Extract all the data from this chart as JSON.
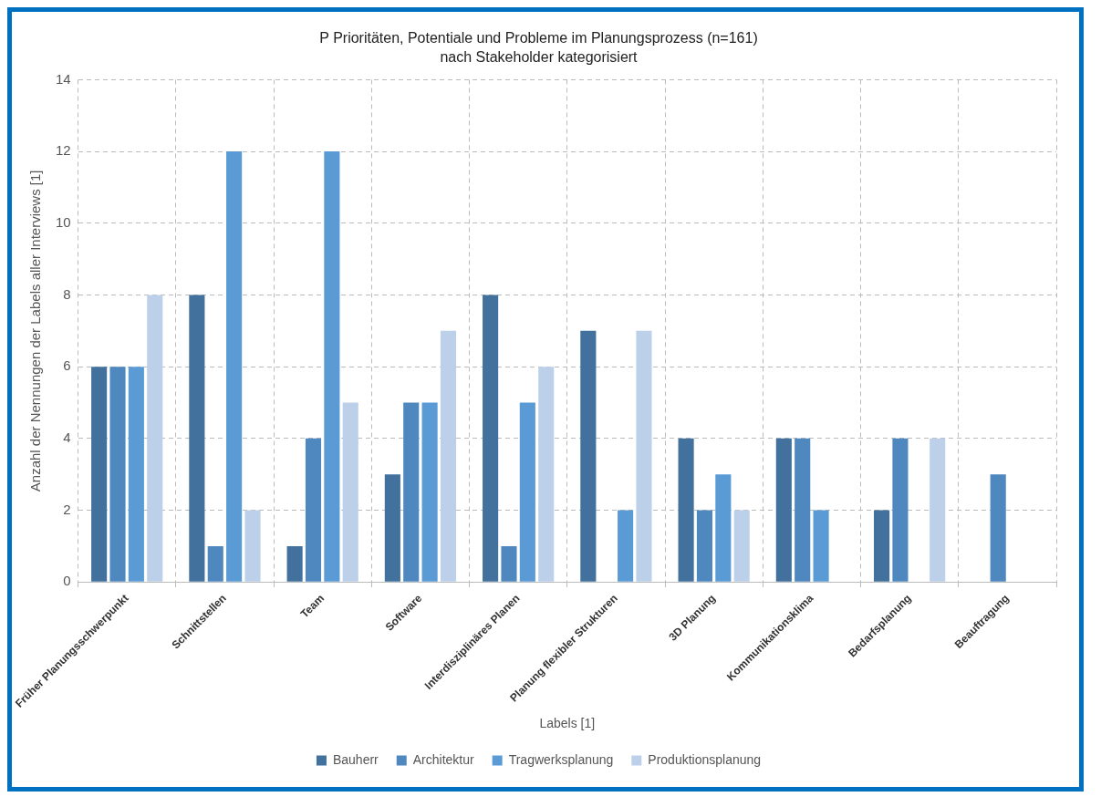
{
  "chart_data": {
    "type": "bar",
    "title": "P Prioritäten, Potentiale und Probleme im Planungsprozess (n=161)",
    "subtitle": "nach Stakeholder kategorisiert",
    "xlabel": "Labels [1]",
    "ylabel": "Anzahl der Nennungen der Labels aller Interviews [1]",
    "categories": [
      "Früher Planungsschwerpunkt",
      "Schnittstellen",
      "Team",
      "Software",
      "Interdisziplinäres Planen",
      "Planung flexibler Strukturen",
      "3D Planung",
      "Kommunikationsklima",
      "Bedarfsplanung",
      "Beauftragung"
    ],
    "series": [
      {
        "name": "Bauherr",
        "color": "#41719c",
        "values": [
          6,
          8,
          1,
          3,
          8,
          7,
          4,
          4,
          2,
          0
        ]
      },
      {
        "name": "Architektur",
        "color": "#4f87bf",
        "values": [
          6,
          1,
          4,
          5,
          1,
          0,
          2,
          4,
          4,
          3
        ]
      },
      {
        "name": "Tragwerksplanung",
        "color": "#5b9bd5",
        "values": [
          6,
          12,
          12,
          5,
          5,
          2,
          3,
          2,
          0,
          0
        ]
      },
      {
        "name": "Produktionsplanung",
        "color": "#bdd0ea",
        "values": [
          8,
          2,
          5,
          7,
          6,
          7,
          2,
          0,
          4,
          0
        ]
      }
    ],
    "ylim": [
      0,
      14
    ],
    "yticks": [
      0,
      2,
      4,
      6,
      8,
      10,
      12,
      14
    ],
    "grid": true,
    "legend": "bottom"
  }
}
